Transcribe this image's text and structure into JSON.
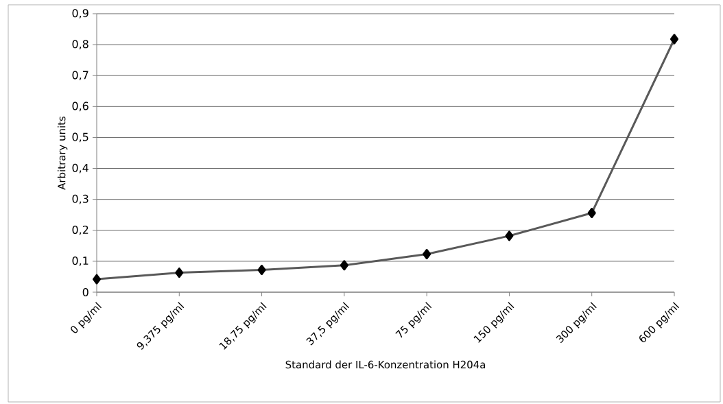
{
  "chart_data": {
    "type": "line",
    "xlabel": "Standard der IL-6-Konzentration H204a",
    "ylabel": "Arbitrary units",
    "categories": [
      "0 pg/ml",
      "9,375 pg/ml",
      "18,75 pg/ml",
      "37,5 pg/ml",
      "75 pg/ml",
      "150 pg/ml",
      "300 pg/ml",
      "600 pg/ml"
    ],
    "series": [
      {
        "color": "#595959",
        "values": [
          0.042,
          0.063,
          0.072,
          0.087,
          0.123,
          0.182,
          0.256,
          0.818
        ]
      }
    ],
    "ylim": [
      0,
      0.9
    ],
    "yticks": [
      0,
      {
        "value": 0.1,
        "label": "0,1"
      },
      {
        "value": 0.2,
        "label": "0,2"
      },
      {
        "value": 0.3,
        "label": "0,3"
      },
      {
        "value": 0.4,
        "label": "0,4"
      },
      {
        "value": 0.5,
        "label": "0,5"
      },
      {
        "value": 0.6,
        "label": "0,6"
      },
      {
        "value": 0.7,
        "label": "0,7"
      },
      {
        "value": 0.8,
        "label": "0,8"
      },
      {
        "value": 0.9,
        "label": "0,9"
      }
    ],
    "grid": "y",
    "marker": "diamond",
    "line_style": "solid"
  }
}
